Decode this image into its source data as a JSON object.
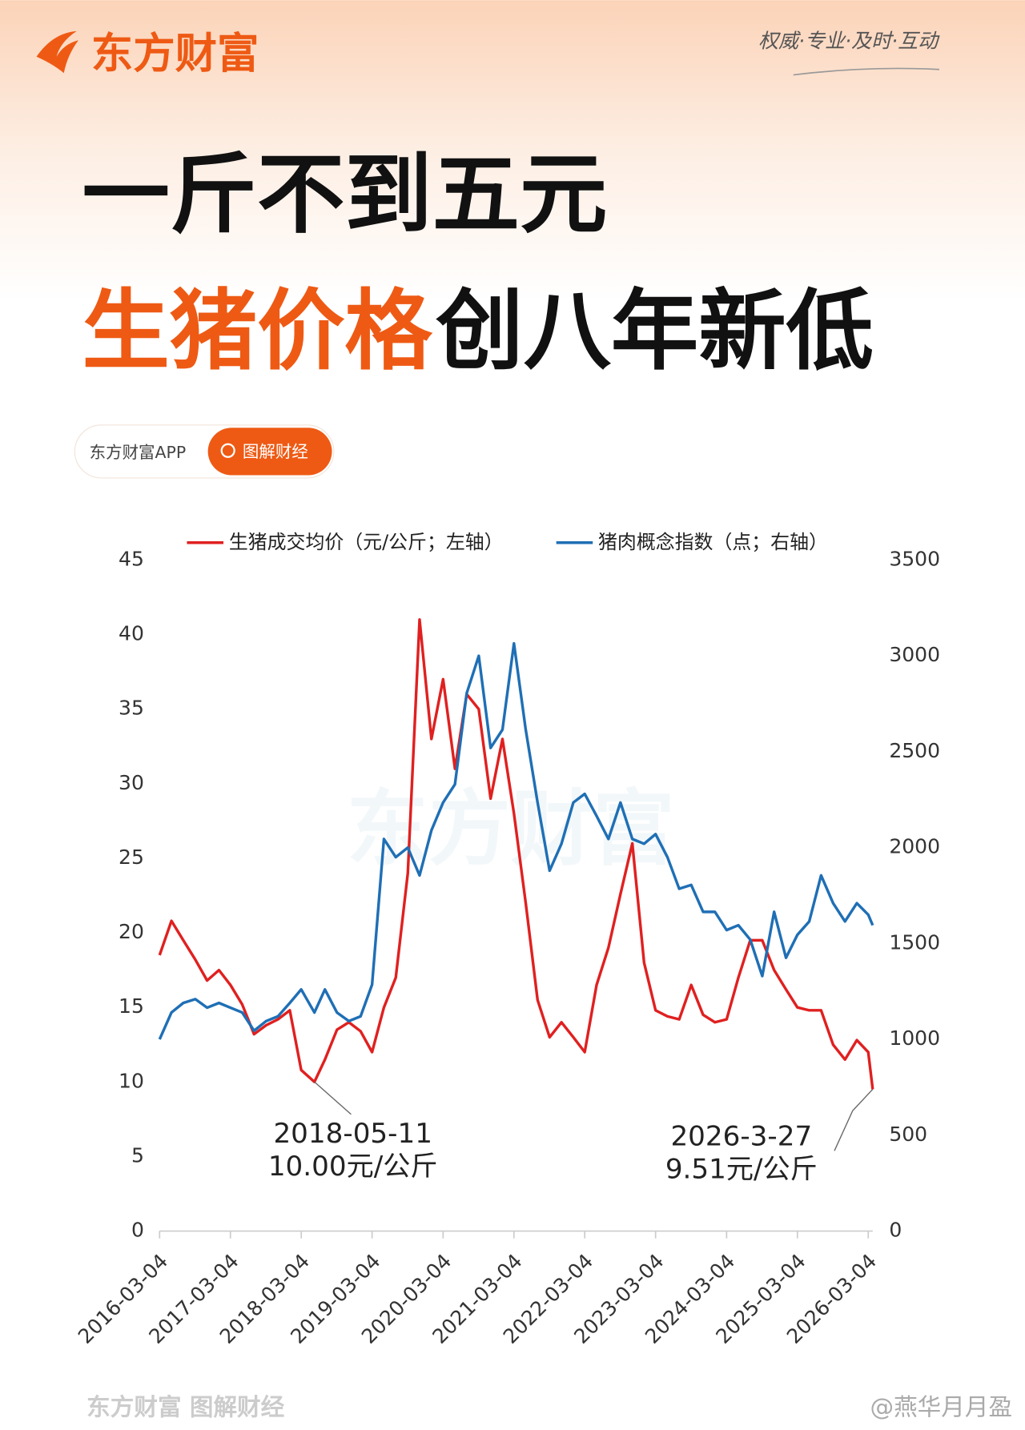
{
  "header": {
    "brand": "东方财富",
    "slogan": "权威·专业·及时·互动"
  },
  "headline": {
    "line1": "一斤不到五元",
    "line2_highlight": "生猪价格",
    "line2_rest": "创八年新低"
  },
  "badge": {
    "app": "东方财富APP",
    "tag": "图解财经"
  },
  "chart_data": {
    "type": "line",
    "x": [
      "2016-03-04",
      "2016-05-04",
      "2016-07-04",
      "2016-09-04",
      "2016-11-04",
      "2017-01-04",
      "2017-03-04",
      "2017-05-04",
      "2017-07-04",
      "2017-09-04",
      "2017-11-04",
      "2018-01-04",
      "2018-03-04",
      "2018-05-11",
      "2018-07-04",
      "2018-09-04",
      "2018-11-04",
      "2019-01-04",
      "2019-03-04",
      "2019-05-04",
      "2019-07-04",
      "2019-09-04",
      "2019-11-04",
      "2020-01-04",
      "2020-03-04",
      "2020-05-04",
      "2020-07-04",
      "2020-09-04",
      "2020-11-04",
      "2021-01-04",
      "2021-03-04",
      "2021-05-04",
      "2021-07-04",
      "2021-09-04",
      "2021-11-04",
      "2022-01-04",
      "2022-03-04",
      "2022-05-04",
      "2022-07-04",
      "2022-09-04",
      "2022-11-04",
      "2023-01-04",
      "2023-03-04",
      "2023-05-04",
      "2023-07-04",
      "2023-09-04",
      "2023-11-04",
      "2024-01-04",
      "2024-03-04",
      "2024-05-04",
      "2024-07-04",
      "2024-09-04",
      "2024-11-04",
      "2025-01-04",
      "2025-03-04",
      "2025-05-04",
      "2025-07-04",
      "2025-09-04",
      "2025-11-04",
      "2026-01-04",
      "2026-03-04",
      "2026-03-27"
    ],
    "series": [
      {
        "name": "生猪成交均价（元/公斤；左轴）",
        "color": "#e02020",
        "values": [
          18.5,
          20.8,
          19.5,
          18.2,
          16.8,
          17.5,
          16.5,
          15.2,
          13.2,
          13.8,
          14.2,
          14.8,
          10.8,
          10.0,
          11.5,
          13.5,
          14,
          13.4,
          12,
          15,
          17,
          24,
          41,
          33,
          37,
          31,
          36,
          35,
          29,
          33,
          28,
          22,
          15.5,
          13,
          14,
          13,
          12,
          16.5,
          19,
          22.6,
          26,
          18,
          14.8,
          14.4,
          14.2,
          16.5,
          14.5,
          14,
          14.2,
          17,
          19.5,
          19.5,
          17.5,
          16.2,
          15,
          14.8,
          14.8,
          12.5,
          11.5,
          12.8,
          12,
          9.51
        ]
      },
      {
        "name": "猪肉概念指数（点；右轴）",
        "color": "#1f6fb5",
        "axis": "y2",
        "values": [
          1000,
          1140,
          1190,
          1210,
          1165,
          1190,
          1165,
          1140,
          1045,
          1095,
          1120,
          1190,
          1260,
          1140,
          1260,
          1140,
          1095,
          1120,
          1285,
          2045,
          1950,
          2000,
          1855,
          2090,
          2235,
          2330,
          2805,
          3000,
          2520,
          2615,
          3065,
          2615,
          2235,
          1880,
          2020,
          2235,
          2280,
          2165,
          2045,
          2235,
          2045,
          2020,
          2070,
          1950,
          1785,
          1805,
          1665,
          1665,
          1570,
          1595,
          1520,
          1330,
          1665,
          1425,
          1545,
          1615,
          1855,
          1710,
          1615,
          1710,
          1650,
          1595
        ]
      }
    ],
    "xlim": [
      "2016-03-04",
      "2026-03-27"
    ],
    "xticks": [
      "2016-03-04",
      "2017-03-04",
      "2018-03-04",
      "2019-03-04",
      "2020-03-04",
      "2021-03-04",
      "2022-03-04",
      "2023-03-04",
      "2024-03-04",
      "2025-03-04",
      "2026-03-04"
    ],
    "ylim": [
      0,
      45
    ],
    "yticks": [
      0,
      5,
      10,
      15,
      20,
      25,
      30,
      35,
      40,
      45
    ],
    "y2lim": [
      0,
      3500
    ],
    "y2ticks": [
      0,
      500,
      1000,
      1500,
      2000,
      2500,
      3000,
      3500
    ],
    "annotations": [
      {
        "lines": [
          "2018-05-11",
          "10.00元/公斤"
        ]
      },
      {
        "lines": [
          "2026-3-27",
          "9.51元/公斤"
        ]
      }
    ]
  },
  "footer": {
    "source": "东方财富 图解财经",
    "watermark": "@燕华月月盈"
  }
}
